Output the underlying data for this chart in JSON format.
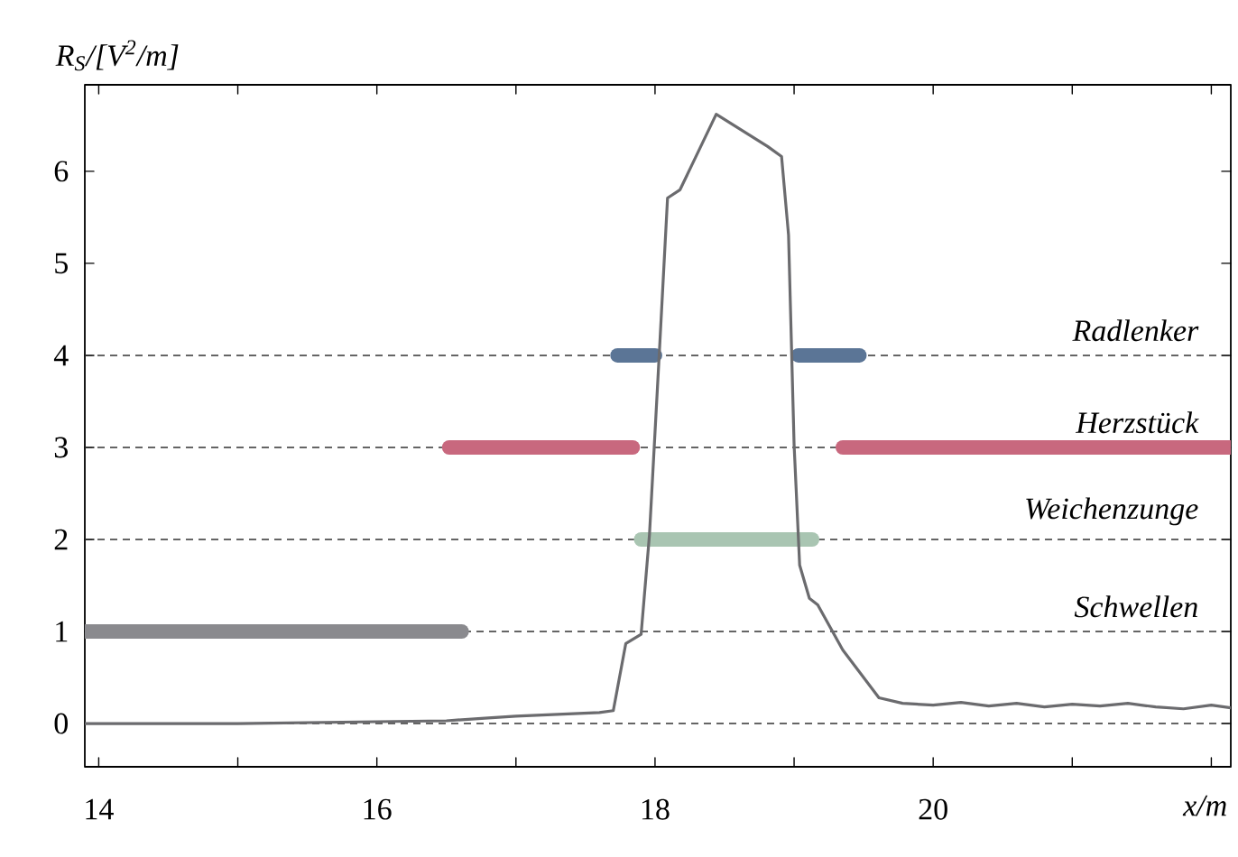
{
  "chart_data": {
    "type": "line",
    "ylabel": "R$_{S}$/[V$^{2}$/m]",
    "xlabel": "x/m",
    "xlim": [
      13.9,
      22.14
    ],
    "ylim": [
      -0.47,
      6.94
    ],
    "xticks": [
      14,
      {
        "value": 15,
        "label": null
      },
      16,
      {
        "value": 17,
        "label": null
      },
      18,
      {
        "value": 19,
        "label": null
      },
      20,
      {
        "value": 21,
        "label": null
      },
      {
        "value": 22,
        "label": null
      }
    ],
    "yticks": [
      0,
      1,
      2,
      3,
      4,
      5,
      6
    ],
    "grid": false,
    "marker": "none",
    "line_style": "solid",
    "ref_lines": [
      {
        "axis": "y",
        "value": 0,
        "color": "#333333",
        "line_style": "dashed"
      },
      {
        "axis": "y",
        "value": 1,
        "label": "Schwellen",
        "color": "#333333",
        "line_style": "dashed"
      },
      {
        "axis": "y",
        "value": 2,
        "label": "Weichenzunge",
        "color": "#333333",
        "line_style": "dashed"
      },
      {
        "axis": "y",
        "value": 3,
        "label": "Herzstück",
        "color": "#333333",
        "line_style": "dashed"
      },
      {
        "axis": "y",
        "value": 4,
        "label": "Radlenker",
        "color": "#333333",
        "line_style": "dashed"
      }
    ],
    "series": [
      {
        "color": "#8a8a8e",
        "x": [
          13.9,
          16.61
        ],
        "values": [
          1,
          1
        ]
      },
      {
        "color": "#a9c5b2",
        "x": [
          17.9,
          19.13
        ],
        "values": [
          2,
          2
        ]
      },
      {
        "color": "#c8687e",
        "x": [
          16.52,
          17.84
        ],
        "values": [
          3,
          3
        ]
      },
      {
        "color": "#c8687e",
        "x": [
          19.35,
          22.14
        ],
        "values": [
          3,
          3
        ]
      },
      {
        "color": "#5b7596",
        "x": [
          17.73,
          18.0
        ],
        "values": [
          4,
          4
        ]
      },
      {
        "color": "#5b7596",
        "x": [
          19.03,
          19.47
        ],
        "values": [
          4,
          4
        ]
      },
      {
        "color": "#6b6b6e",
        "x": [
          13.9,
          15,
          16,
          16.5,
          16.8,
          17.0,
          17.3,
          17.6,
          17.7,
          17.79,
          17.9,
          17.96,
          18.03,
          18.09,
          18.18,
          18.44,
          18.61,
          18.68,
          18.81,
          18.91,
          18.96,
          19.0,
          19.04,
          19.11,
          19.17,
          19.35,
          19.61,
          19.78,
          20.0,
          20.2,
          20.4,
          20.6,
          20.8,
          21.0,
          21.2,
          21.4,
          21.6,
          21.8,
          22.0,
          22.14
        ],
        "values": [
          0.0,
          0.0,
          0.02,
          0.03,
          0.06,
          0.08,
          0.1,
          0.12,
          0.14,
          0.87,
          0.97,
          2.05,
          4.0,
          5.71,
          5.8,
          6.62,
          null,
          null,
          6.27,
          6.16,
          5.31,
          3.03,
          1.72,
          1.36,
          1.29,
          0.8,
          0.28,
          0.22,
          0.2,
          0.23,
          0.19,
          0.22,
          0.18,
          0.21,
          0.19,
          0.22,
          0.18,
          0.16,
          0.2,
          0.17
        ]
      }
    ]
  }
}
